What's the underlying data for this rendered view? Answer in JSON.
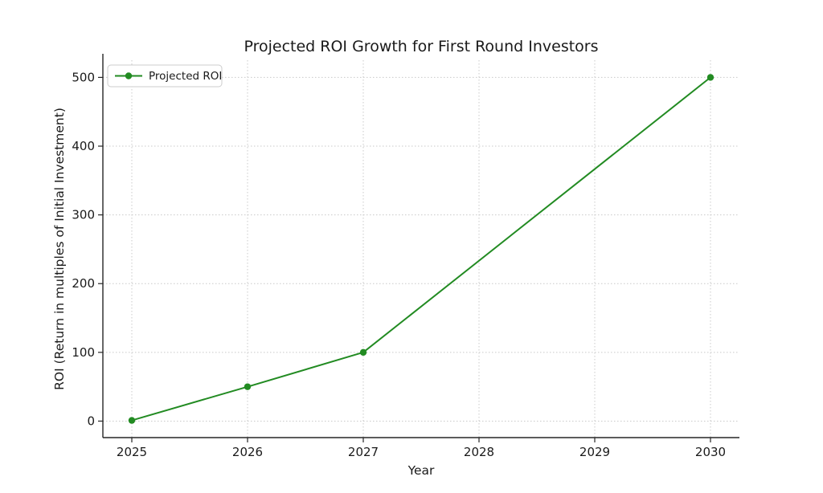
{
  "chart_data": {
    "type": "line",
    "title": "Projected ROI Growth for First Round Investors",
    "xlabel": "Year",
    "ylabel": "ROI (Return in multiples of Initial Investment)",
    "x_ticks": [
      2025,
      2026,
      2027,
      2028,
      2029,
      2030
    ],
    "y_ticks": [
      0,
      100,
      200,
      300,
      400,
      500
    ],
    "xlim": [
      2024.75,
      2030.25
    ],
    "ylim": [
      -24,
      525
    ],
    "grid": "dotted",
    "legend_position": "upper-left",
    "series": [
      {
        "name": "Projected ROI",
        "color": "#228B22",
        "marker": "circle",
        "x": [
          2025,
          2026,
          2027,
          2030
        ],
        "y": [
          1,
          50,
          100,
          500
        ]
      }
    ],
    "colors": {
      "grid": "#c9c9c9",
      "spine": "#262626",
      "legend_border": "#cccccc",
      "legend_bg": "#ffffff",
      "text": "#1a1a1a"
    }
  }
}
